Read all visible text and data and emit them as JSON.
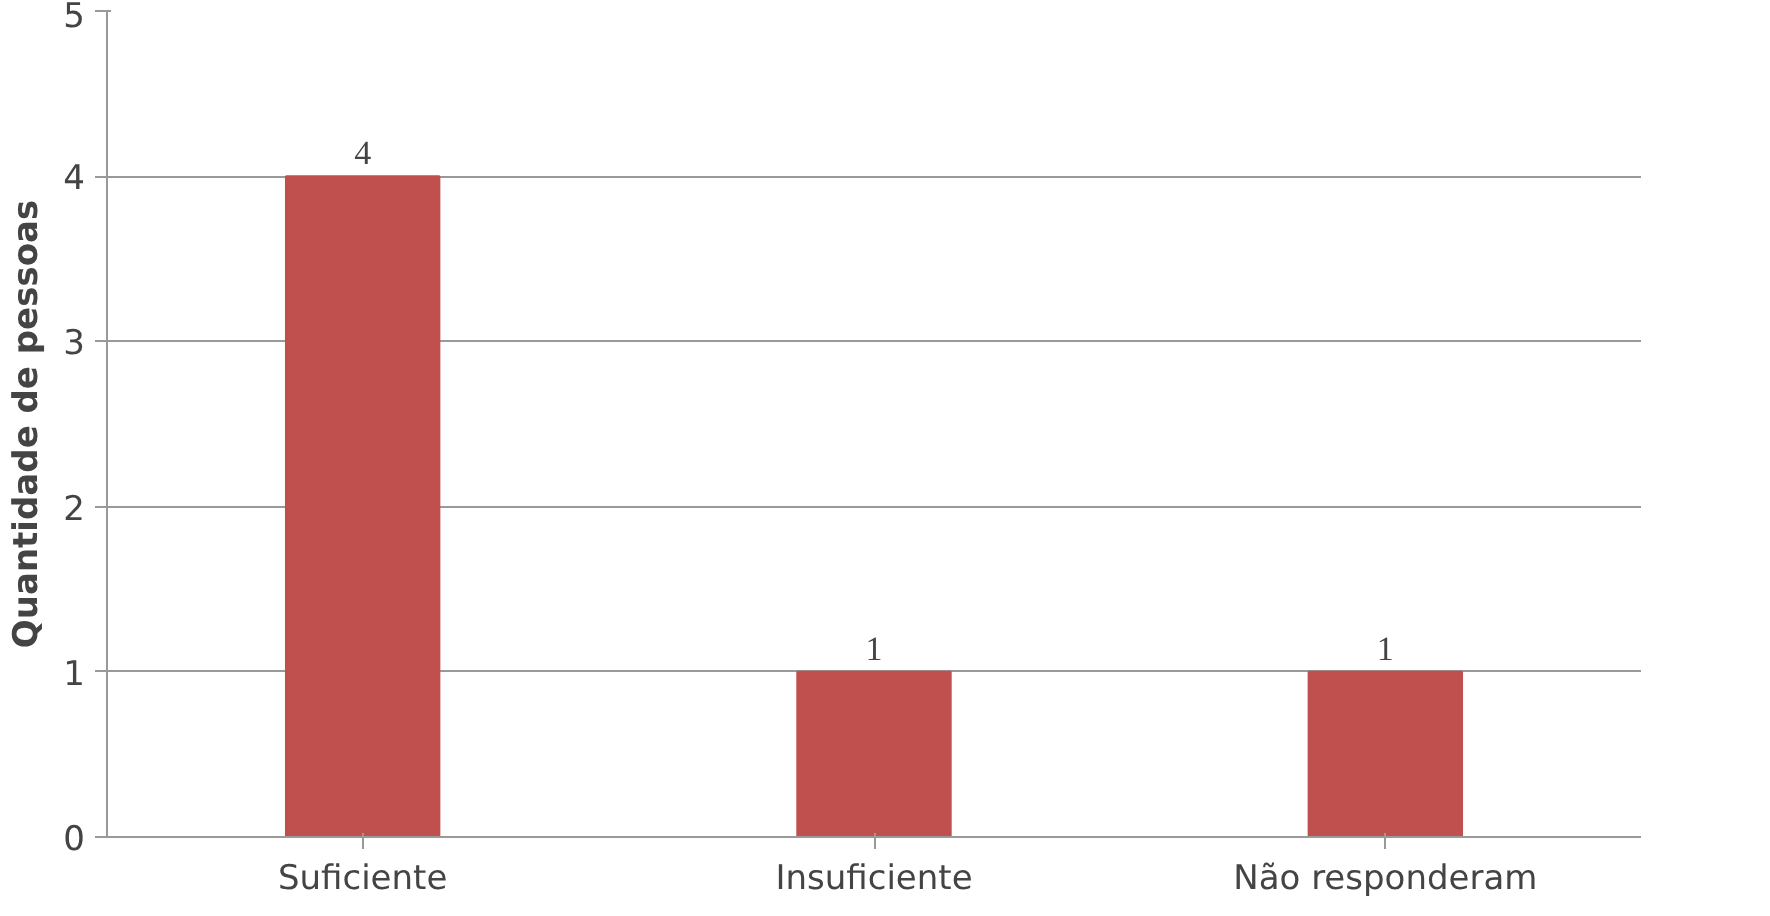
{
  "chart_data": {
    "type": "bar",
    "ylabel": "Quantidade de pessoas",
    "categories": [
      "Suficiente",
      "Insuficiente",
      "Não responderam"
    ],
    "values": [
      4,
      1,
      1
    ],
    "color": "#c0504d",
    "ylim": [
      0,
      5
    ],
    "yticks": [
      0,
      1,
      2,
      3,
      4,
      5
    ],
    "grid": "y",
    "data_labels": true
  }
}
